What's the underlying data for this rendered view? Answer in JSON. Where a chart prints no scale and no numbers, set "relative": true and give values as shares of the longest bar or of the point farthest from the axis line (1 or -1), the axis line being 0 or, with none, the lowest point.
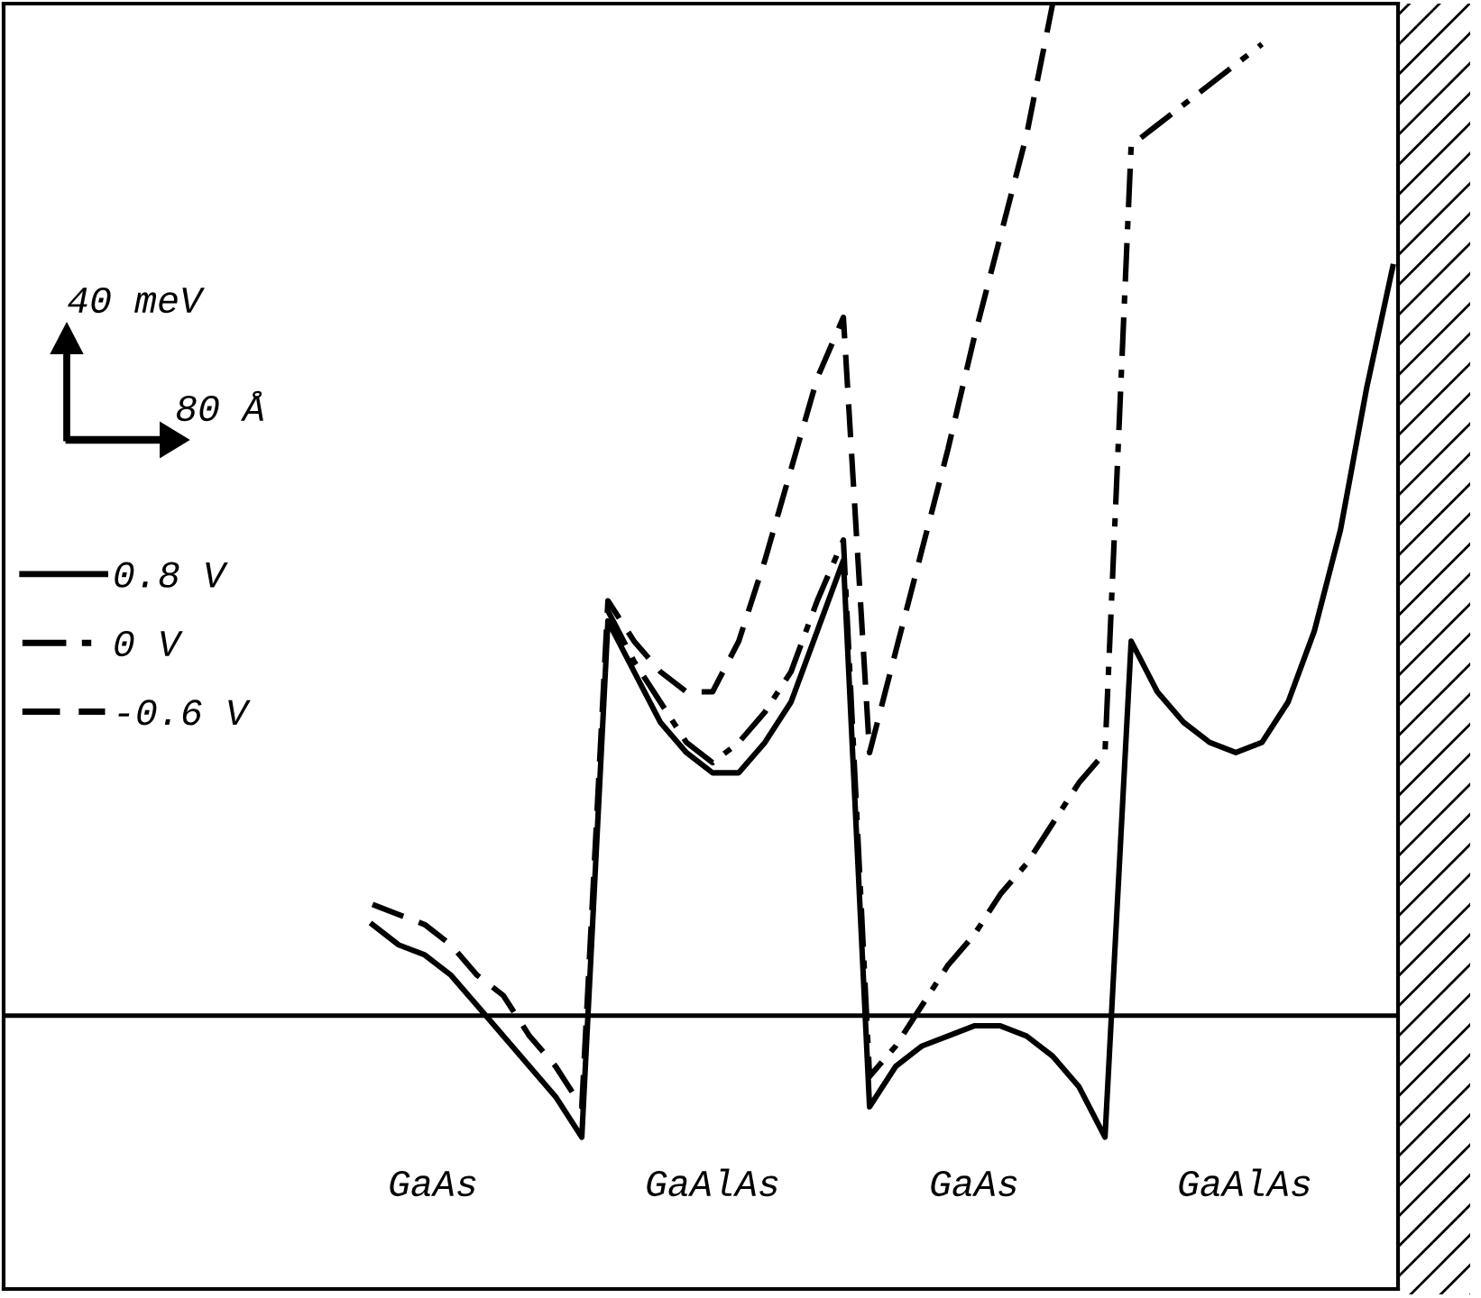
{
  "chart_data": {
    "type": "line",
    "relative": true,
    "categories": [
      null,
      null,
      null,
      null,
      null,
      null,
      null,
      null,
      null,
      null,
      null,
      null,
      null,
      null,
      null,
      null,
      null,
      null,
      null,
      null,
      null,
      null,
      null,
      null,
      null,
      null,
      null,
      null,
      null,
      null,
      null,
      null,
      null,
      null,
      null,
      null,
      null,
      null,
      null,
      null,
      null
    ],
    "series": [
      {
        "name": "0.8 V",
        "color": "#000000",
        "line_style": "solid",
        "values": [
          null,
          0.09,
          0.07,
          0.06,
          0.04,
          0.01,
          -0.02,
          -0.05,
          -0.08,
          -0.12,
          0.39,
          0.34,
          0.29,
          0.26,
          0.24,
          0.24,
          0.27,
          0.31,
          0.38,
          0.45,
          -0.09,
          -0.05,
          -0.03,
          -0.02,
          -0.01,
          -0.01,
          -0.02,
          -0.04,
          -0.07,
          -0.12,
          0.37,
          0.32,
          0.29,
          0.27,
          0.26,
          0.27,
          0.31,
          0.38,
          0.48,
          0.62,
          0.74
        ]
      },
      {
        "name": "0 V",
        "color": "#000000",
        "line_style": "dashdot",
        "values": [
          null,
          null,
          null,
          null,
          null,
          null,
          null,
          null,
          null,
          null,
          0.4,
          0.35,
          0.31,
          0.27,
          0.25,
          0.27,
          0.3,
          0.34,
          0.41,
          0.47,
          -0.06,
          -0.03,
          0.01,
          0.05,
          0.08,
          0.12,
          0.15,
          0.19,
          0.23,
          0.26,
          0.86,
          0.88,
          0.9,
          0.92,
          0.94,
          0.96,
          null,
          null,
          null,
          null,
          null
        ]
      },
      {
        "name": "-0.6 V",
        "color": "#000000",
        "line_style": "dashed",
        "values": [
          null,
          0.11,
          0.1,
          0.09,
          0.07,
          0.04,
          0.02,
          -0.02,
          -0.05,
          -0.09,
          0.41,
          0.37,
          0.34,
          0.32,
          0.32,
          0.37,
          0.45,
          0.54,
          0.63,
          0.69,
          0.26,
          0.36,
          0.46,
          0.56,
          0.67,
          0.77,
          0.87,
          1.0,
          null,
          null,
          null,
          null,
          null,
          null,
          null,
          null,
          null,
          null,
          null,
          null,
          null
        ]
      }
    ],
    "legend": "left",
    "annotations": [
      "40 meV",
      "80 Å",
      "GaAs",
      "GaAlAs",
      "GaAs",
      "GaAlAs"
    ]
  }
}
